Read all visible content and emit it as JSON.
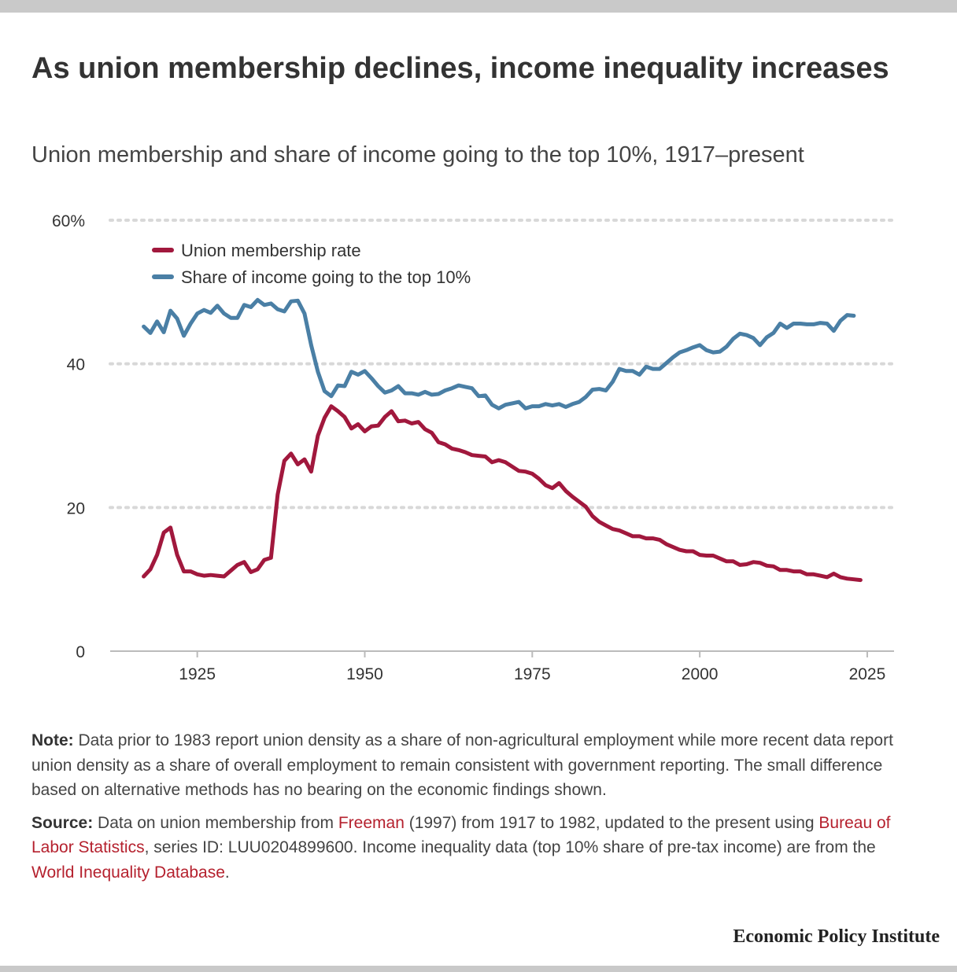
{
  "title": "As union membership declines, income inequality increases",
  "subtitle": "Union membership and share of income going to the top 10%, 1917–present",
  "note": {
    "label": "Note:",
    "text": "Data prior to 1983 report union density as a share of non-agricultural employment while more recent data report union density as a share of overall employment to remain consistent with government reporting. The small difference based on alternative methods has no bearing on the economic findings shown."
  },
  "source": {
    "label": "Source:",
    "part1": "Data on union membership from ",
    "link1": "Freeman",
    "part2": " (1997) from 1917 to 1982, updated to the present using ",
    "link2": "Bureau of Labor Statistics",
    "part3": ", series ID: LUU0204899600. Income inequality data (top 10% share of pre-tax income) are from the ",
    "link3": "World Inequality Database",
    "part4": "."
  },
  "brand": "Economic Policy Institute",
  "colors": {
    "union": "#a1183d",
    "income": "#4a7fa5",
    "grid": "#d8d8d8",
    "link": "#b5212e"
  },
  "chart_data": {
    "type": "line",
    "legend_position": "top-left",
    "grid": true,
    "xlim": [
      1912,
      2029
    ],
    "ylim": [
      0,
      60
    ],
    "x_ticks": [
      1925,
      1950,
      1975,
      2000,
      2025
    ],
    "x_tick_labels": [
      "1925",
      "1950",
      "1975",
      "2000",
      "2025"
    ],
    "y_ticks": [
      0,
      20,
      40,
      60
    ],
    "y_tick_labels": [
      "0",
      "20",
      "40",
      "60%"
    ],
    "series": [
      {
        "name": "Union membership rate",
        "color": "#a1183d",
        "x": [
          1917,
          1918,
          1919,
          1920,
          1921,
          1922,
          1923,
          1924,
          1925,
          1926,
          1927,
          1928,
          1929,
          1930,
          1931,
          1932,
          1933,
          1934,
          1935,
          1936,
          1937,
          1938,
          1939,
          1940,
          1941,
          1942,
          1943,
          1944,
          1945,
          1946,
          1947,
          1948,
          1949,
          1950,
          1951,
          1952,
          1953,
          1954,
          1955,
          1956,
          1957,
          1958,
          1959,
          1960,
          1961,
          1962,
          1963,
          1964,
          1965,
          1966,
          1967,
          1968,
          1969,
          1970,
          1971,
          1972,
          1973,
          1974,
          1975,
          1976,
          1977,
          1978,
          1979,
          1980,
          1981,
          1982,
          1983,
          1984,
          1985,
          1986,
          1987,
          1988,
          1989,
          1990,
          1991,
          1992,
          1993,
          1994,
          1995,
          1996,
          1997,
          1998,
          1999,
          2000,
          2001,
          2002,
          2003,
          2004,
          2005,
          2006,
          2007,
          2008,
          2009,
          2010,
          2011,
          2012,
          2013,
          2014,
          2015,
          2016,
          2017,
          2018,
          2019,
          2020,
          2021,
          2022,
          2023,
          2024
        ],
        "values": [
          10.4,
          11.4,
          13.4,
          16.5,
          17.2,
          13.4,
          11.1,
          11.1,
          10.7,
          10.5,
          10.6,
          10.5,
          10.4,
          11.2,
          12.0,
          12.4,
          11.0,
          11.4,
          12.7,
          13.0,
          21.8,
          26.5,
          27.5,
          26.0,
          26.7,
          25.0,
          30.0,
          32.5,
          34.1,
          33.4,
          32.6,
          31.0,
          31.6,
          30.6,
          31.3,
          31.4,
          32.6,
          33.4,
          32.0,
          32.1,
          31.7,
          31.9,
          30.9,
          30.4,
          29.1,
          28.8,
          28.2,
          28.0,
          27.7,
          27.3,
          27.2,
          27.1,
          26.3,
          26.6,
          26.3,
          25.7,
          25.1,
          25.0,
          24.7,
          24.0,
          23.1,
          22.7,
          23.4,
          22.3,
          21.5,
          20.8,
          20.1,
          18.8,
          18.0,
          17.5,
          17.0,
          16.8,
          16.4,
          16.0,
          16.0,
          15.7,
          15.7,
          15.5,
          14.9,
          14.5,
          14.1,
          13.9,
          13.9,
          13.4,
          13.3,
          13.3,
          12.9,
          12.5,
          12.5,
          12.0,
          12.1,
          12.4,
          12.3,
          11.9,
          11.8,
          11.3,
          11.3,
          11.1,
          11.1,
          10.7,
          10.7,
          10.5,
          10.3,
          10.8,
          10.3,
          10.1,
          10.0,
          9.9
        ]
      },
      {
        "name": "Share of income going to the top 10%",
        "color": "#4a7fa5",
        "x": [
          1917,
          1918,
          1919,
          1920,
          1921,
          1922,
          1923,
          1924,
          1925,
          1926,
          1927,
          1928,
          1929,
          1930,
          1931,
          1932,
          1933,
          1934,
          1935,
          1936,
          1937,
          1938,
          1939,
          1940,
          1941,
          1942,
          1943,
          1944,
          1945,
          1946,
          1947,
          1948,
          1949,
          1950,
          1951,
          1952,
          1953,
          1954,
          1955,
          1956,
          1957,
          1958,
          1959,
          1960,
          1961,
          1962,
          1963,
          1964,
          1965,
          1966,
          1967,
          1968,
          1969,
          1970,
          1971,
          1972,
          1973,
          1974,
          1975,
          1976,
          1977,
          1978,
          1979,
          1980,
          1981,
          1982,
          1983,
          1984,
          1985,
          1986,
          1987,
          1988,
          1989,
          1990,
          1991,
          1992,
          1993,
          1994,
          1995,
          1996,
          1997,
          1998,
          1999,
          2000,
          2001,
          2002,
          2003,
          2004,
          2005,
          2006,
          2007,
          2008,
          2009,
          2010,
          2011,
          2012,
          2013,
          2014,
          2015,
          2016,
          2017,
          2018,
          2019,
          2020,
          2021,
          2022,
          2023
        ],
        "values": [
          45.2,
          44.3,
          45.9,
          44.4,
          47.4,
          46.3,
          43.9,
          45.6,
          47.0,
          47.5,
          47.1,
          48.1,
          47.0,
          46.4,
          46.4,
          48.2,
          47.9,
          48.9,
          48.2,
          48.4,
          47.6,
          47.3,
          48.7,
          48.8,
          47.0,
          42.6,
          38.9,
          36.2,
          35.5,
          37.0,
          36.9,
          38.9,
          38.5,
          39.0,
          38.0,
          36.9,
          36.0,
          36.3,
          36.9,
          35.9,
          35.9,
          35.7,
          36.1,
          35.7,
          35.8,
          36.3,
          36.6,
          37.0,
          36.8,
          36.6,
          35.5,
          35.6,
          34.3,
          33.8,
          34.3,
          34.5,
          34.7,
          33.8,
          34.1,
          34.1,
          34.4,
          34.2,
          34.4,
          34.0,
          34.4,
          34.7,
          35.4,
          36.4,
          36.5,
          36.3,
          37.5,
          39.3,
          39.0,
          39.0,
          38.5,
          39.6,
          39.3,
          39.3,
          40.1,
          40.9,
          41.6,
          41.9,
          42.3,
          42.6,
          41.9,
          41.6,
          41.7,
          42.4,
          43.5,
          44.2,
          44.0,
          43.6,
          42.6,
          43.7,
          44.3,
          45.6,
          45.0,
          45.6,
          45.6,
          45.5,
          45.5,
          45.7,
          45.6,
          44.6,
          46.0,
          46.8,
          46.7
        ]
      }
    ]
  }
}
